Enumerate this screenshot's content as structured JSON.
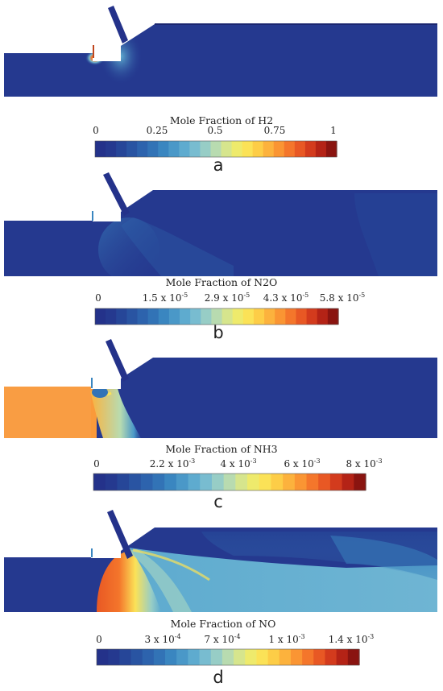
{
  "colormap": [
    "#24328a",
    "#25398f",
    "#264698",
    "#2954a2",
    "#2d63ad",
    "#3273b6",
    "#3a86c0",
    "#4a98c8",
    "#5eabcf",
    "#78bcd0",
    "#97cdc6",
    "#b8dbb0",
    "#d6e58d",
    "#eeea6c",
    "#fbe257",
    "#fdcd47",
    "#fcb23d",
    "#fa9533",
    "#f4762b",
    "#e85824",
    "#d33b1d",
    "#b42316",
    "#8a1410"
  ],
  "panels": [
    {
      "letter": "a",
      "colorbar": {
        "title": "Mole Fraction of H2",
        "ticks": [
          "0",
          "0.25",
          "0.5",
          "0.75",
          "1"
        ],
        "exponents": [
          "",
          "",
          "",
          "",
          ""
        ]
      }
    },
    {
      "letter": "b",
      "colorbar": {
        "title": "Mole Fraction of N2O",
        "ticks": [
          "0",
          "1.5 x 10",
          "2.9 x 10",
          "4.3 x 10",
          "5.8 x 10"
        ],
        "exponents": [
          "",
          "-5",
          "-5",
          "-5",
          "-5"
        ]
      }
    },
    {
      "letter": "c",
      "colorbar": {
        "title": "Mole Fraction of NH3",
        "ticks": [
          "0",
          "2.2 x 10",
          "4 x 10",
          "6 x 10",
          "8 x 10"
        ],
        "exponents": [
          "",
          "-3",
          "-3",
          "-3",
          "-3"
        ]
      }
    },
    {
      "letter": "d",
      "colorbar": {
        "title": "Mole Fraction of NO",
        "ticks": [
          "0",
          "3 x 10",
          "7 x 10",
          "1 x 10",
          "1.4 x 10"
        ],
        "exponents": [
          "",
          "-4",
          "-4",
          "-3",
          "-3"
        ]
      }
    }
  ]
}
